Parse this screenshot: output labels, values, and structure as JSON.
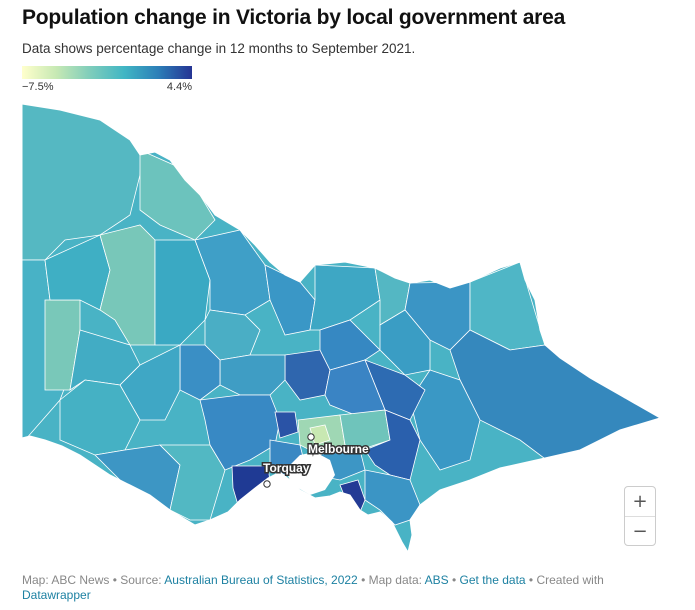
{
  "header": {
    "title": "Population change in Victoria by local government area",
    "subtitle": "Data shows percentage change in 12 months to September 2021."
  },
  "legend": {
    "min_label": "−7.5%",
    "max_label": "4.4%",
    "min_value": -7.5,
    "max_value": 4.4,
    "colors": [
      "#ffffcc",
      "#c7e9b4",
      "#7fcdbb",
      "#41b6c4",
      "#2c7fb8",
      "#253494"
    ]
  },
  "map": {
    "region": "Victoria",
    "labels": {
      "melbourne": "Melbourne",
      "torquay": "Torquay"
    }
  },
  "zoom": {
    "in_label": "+",
    "out_label": "−"
  },
  "footer": {
    "map_credit": "Map: ABC News",
    "source_prefix": "Source:",
    "source_link": "Australian Bureau of Statistics, 2022",
    "map_data_prefix": "Map data:",
    "map_data_link": "ABS",
    "get_data_link": "Get the data",
    "created_with": "Created with",
    "tool_link": "Datawrapper"
  }
}
